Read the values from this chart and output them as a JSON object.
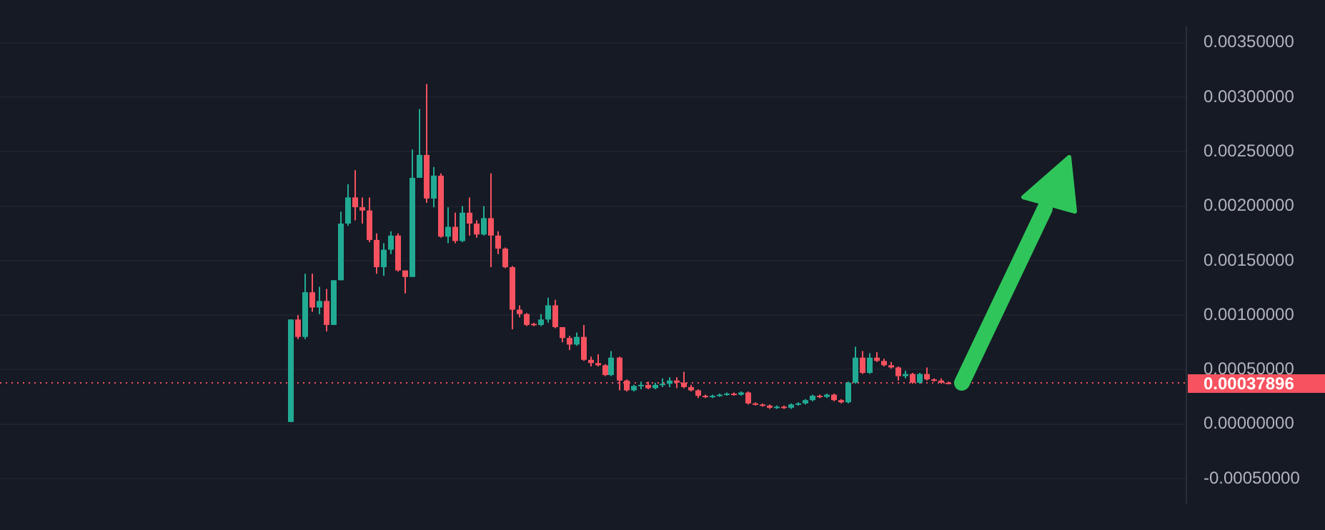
{
  "chart_data": {
    "type": "candlestick",
    "categories": [
      null,
      null,
      null,
      null,
      null,
      null,
      null,
      null,
      null,
      null,
      null,
      null,
      null,
      null,
      null,
      null,
      null,
      null,
      null,
      null,
      null,
      null,
      null,
      null,
      null,
      null,
      null,
      null,
      null,
      null,
      null,
      null,
      null,
      null,
      null,
      null,
      null,
      null,
      null,
      null,
      null,
      null,
      null,
      null,
      null,
      null,
      null,
      null,
      null,
      null,
      null,
      null,
      null,
      null,
      null,
      null,
      null,
      null,
      null,
      null,
      null,
      null,
      null,
      null,
      null,
      null,
      null,
      null,
      null,
      null,
      null,
      null,
      null,
      null,
      null,
      null,
      null,
      null,
      null,
      null,
      null,
      null,
      null,
      null,
      null,
      null,
      null,
      null,
      null,
      null,
      null,
      null,
      null,
      null,
      null,
      null,
      null,
      null,
      null,
      null,
      null,
      null,
      null,
      null,
      null,
      null,
      null,
      null,
      null,
      null,
      null,
      null,
      null,
      null,
      null,
      null,
      null,
      null,
      null,
      null,
      null,
      null,
      null,
      null,
      null,
      null,
      null,
      null,
      null,
      null,
      null,
      null,
      null,
      null,
      null,
      null,
      null,
      null,
      null,
      null,
      null,
      null,
      null,
      null,
      null,
      null,
      null,
      null,
      null,
      null,
      null,
      null,
      null,
      null,
      null,
      null,
      null,
      null,
      null,
      null,
      null,
      null,
      null,
      null,
      null,
      null
    ],
    "ohlc": [
      null,
      null,
      null,
      null,
      null,
      null,
      null,
      null,
      null,
      null,
      null,
      null,
      null,
      null,
      null,
      null,
      null,
      null,
      null,
      null,
      null,
      null,
      null,
      null,
      null,
      null,
      null,
      null,
      null,
      null,
      null,
      null,
      null,
      null,
      null,
      null,
      null,
      null,
      null,
      null,
      [
        2e-05,
        0.00096,
        2e-05,
        0.00096
      ],
      [
        0.00096,
        0.001,
        0.00078,
        0.0008
      ],
      [
        0.0008,
        0.00138,
        0.00078,
        0.00121
      ],
      [
        0.00121,
        0.00138,
        0.00103,
        0.00107
      ],
      [
        0.00107,
        0.00126,
        0.00101,
        0.00113
      ],
      [
        0.00113,
        0.00124,
        0.00085,
        0.00091
      ],
      [
        0.00091,
        0.00132,
        0.00091,
        0.00132
      ],
      [
        0.00132,
        0.00195,
        0.00132,
        0.00184
      ],
      [
        0.00184,
        0.0022,
        0.00182,
        0.00208
      ],
      [
        0.00208,
        0.00233,
        0.00187,
        0.00199
      ],
      [
        0.00199,
        0.00208,
        0.00184,
        0.00196
      ],
      [
        0.00196,
        0.00208,
        0.00167,
        0.00169
      ],
      [
        0.00169,
        0.00175,
        0.00138,
        0.00144
      ],
      [
        0.00144,
        0.00166,
        0.00136,
        0.0016
      ],
      [
        0.0016,
        0.00177,
        0.00156,
        0.00173
      ],
      [
        0.00173,
        0.00175,
        0.0014,
        0.00141
      ],
      [
        0.00141,
        0.00141,
        0.0012,
        0.00135
      ],
      [
        0.00135,
        0.00252,
        0.00135,
        0.00226
      ],
      [
        0.00226,
        0.00289,
        0.00226,
        0.00247
      ],
      [
        0.00247,
        0.00312,
        0.00203,
        0.00207
      ],
      [
        0.00207,
        0.00236,
        0.00199,
        0.00228
      ],
      [
        0.00228,
        0.0023,
        0.00171,
        0.00172
      ],
      [
        0.00172,
        0.00199,
        0.00166,
        0.00181
      ],
      [
        0.00181,
        0.00194,
        0.00166,
        0.00168
      ],
      [
        0.00168,
        0.002,
        0.00167,
        0.00194
      ],
      [
        0.00194,
        0.00208,
        0.00173,
        0.00184
      ],
      [
        0.00184,
        0.00187,
        0.00171,
        0.00174
      ],
      [
        0.00174,
        0.002,
        0.00173,
        0.00189
      ],
      [
        0.00189,
        0.0023,
        0.00144,
        0.00173
      ],
      [
        0.00173,
        0.00177,
        0.00156,
        0.00161
      ],
      [
        0.00161,
        0.00162,
        0.00143,
        0.00144
      ],
      [
        0.00144,
        0.00145,
        0.00087,
        0.00105
      ],
      [
        0.00105,
        0.00109,
        0.00098,
        0.00101
      ],
      [
        0.00101,
        0.00102,
        0.0009,
        0.00091
      ],
      [
        0.00092,
        0.00093,
        0.0009,
        0.00091
      ],
      [
        0.00091,
        0.00101,
        0.0009,
        0.00096
      ],
      [
        0.00096,
        0.00116,
        0.00093,
        0.00109
      ],
      [
        0.00109,
        0.00114,
        0.00088,
        0.00089
      ],
      [
        0.00089,
        0.00089,
        0.00075,
        0.00079
      ],
      [
        0.00079,
        0.00081,
        0.00068,
        0.00073
      ],
      [
        0.00073,
        0.00084,
        0.00072,
        0.0008
      ],
      [
        0.0008,
        0.00091,
        0.00058,
        0.00059
      ],
      [
        0.00059,
        0.00062,
        0.00053,
        0.00056
      ],
      [
        0.00056,
        0.00064,
        0.00053,
        0.00054
      ],
      [
        0.00054,
        0.00055,
        0.00044,
        0.00045
      ],
      [
        0.00045,
        0.00067,
        0.00044,
        0.00061
      ],
      [
        0.00061,
        0.00062,
        0.00031,
        0.0004
      ],
      [
        0.0004,
        0.00041,
        0.0003,
        0.00031
      ],
      [
        0.00031,
        0.00036,
        0.0003,
        0.00035
      ],
      [
        0.00035,
        0.00039,
        0.00032,
        0.00036
      ],
      [
        0.00036,
        0.00039,
        0.00032,
        0.00033
      ],
      [
        0.00033,
        0.00038,
        0.00032,
        0.00036
      ],
      [
        0.00036,
        0.00042,
        0.00034,
        0.00037
      ],
      [
        0.00037,
        0.00043,
        0.00034,
        0.0004
      ],
      [
        0.0004,
        0.00043,
        0.00033,
        0.00038
      ],
      [
        0.00038,
        0.00048,
        0.00033,
        0.00034
      ],
      [
        0.00034,
        0.00036,
        0.0003,
        0.00031
      ],
      [
        0.00031,
        0.00032,
        0.00024,
        0.00026
      ],
      [
        0.00026,
        0.00027,
        0.00024,
        0.00025
      ],
      [
        0.00025,
        0.00027,
        0.00024,
        0.00026
      ],
      [
        0.00026,
        0.00028,
        0.00025,
        0.00027
      ],
      [
        0.00027,
        0.00029,
        0.00026,
        0.00028
      ],
      [
        0.00028,
        0.00029,
        0.00026,
        0.00027
      ],
      [
        0.00027,
        0.0003,
        0.00026,
        0.00029
      ],
      [
        0.00029,
        0.0003,
        0.00018,
        0.00019
      ],
      [
        0.00019,
        0.0002,
        0.00017,
        0.00018
      ],
      [
        0.00018,
        0.00019,
        0.00016,
        0.00017
      ],
      [
        0.00017,
        0.00018,
        0.00014,
        0.00015
      ],
      [
        0.00015,
        0.00017,
        0.00014,
        0.00016
      ],
      [
        0.00016,
        0.00017,
        0.00014,
        0.00015
      ],
      [
        0.00015,
        0.00019,
        0.00014,
        0.00018
      ],
      [
        0.00018,
        0.0002,
        0.00017,
        0.00019
      ],
      [
        0.00019,
        0.00023,
        0.00018,
        0.00022
      ],
      [
        0.00022,
        0.00027,
        0.00021,
        0.00026
      ],
      [
        0.00026,
        0.00027,
        0.00024,
        0.00025
      ],
      [
        0.00025,
        0.00028,
        0.00024,
        0.00027
      ],
      [
        0.00027,
        0.00028,
        0.00021,
        0.00022
      ],
      [
        0.00022,
        0.00023,
        0.00019,
        0.0002
      ],
      [
        0.0002,
        0.00039,
        0.00019,
        0.00038
      ],
      [
        0.00038,
        0.00071,
        0.00037,
        0.00061
      ],
      [
        0.00061,
        0.00067,
        0.00046,
        0.00047
      ],
      [
        0.00047,
        0.00065,
        0.00046,
        0.00061
      ],
      [
        0.00061,
        0.00066,
        0.00057,
        0.00058
      ],
      [
        0.00058,
        0.0006,
        0.00053,
        0.00054
      ],
      [
        0.00054,
        0.00057,
        0.00051,
        0.00052
      ],
      [
        0.00052,
        0.00053,
        0.0004,
        0.00044
      ],
      [
        0.00044,
        0.00049,
        0.00042,
        0.00046
      ],
      [
        0.00046,
        0.00047,
        0.00037,
        0.00038
      ],
      [
        0.00038,
        0.00047,
        0.00037,
        0.00046
      ],
      [
        0.00046,
        0.00052,
        0.0004,
        0.00041
      ],
      [
        0.00041,
        0.00042,
        0.00039,
        0.0004
      ],
      [
        0.0004,
        0.00042,
        0.00037,
        0.00038
      ],
      [
        0.00038,
        0.00039,
        0.00037,
        0.00037896
      ],
      null,
      null,
      null,
      null,
      null,
      null,
      null,
      null,
      null,
      null,
      null,
      null,
      null,
      null,
      null,
      null,
      null,
      null,
      null,
      null,
      null,
      null,
      null,
      null,
      null,
      null,
      null,
      null,
      null,
      null,
      null,
      null,
      null
    ],
    "ylim": [
      -0.00072,
      0.00364
    ],
    "yticks": [
      {
        "value": -0.0005,
        "label": "-0.00050000"
      },
      {
        "value": 0,
        "label": "0.00000000"
      },
      {
        "value": 0.0005,
        "label": "0.00050000"
      },
      {
        "value": 0.001,
        "label": "0.00100000"
      },
      {
        "value": 0.0015,
        "label": "0.00150000"
      },
      {
        "value": 0.002,
        "label": "0.00200000"
      },
      {
        "value": 0.0025,
        "label": "0.00250000"
      },
      {
        "value": 0.003,
        "label": "0.00300000"
      },
      {
        "value": 0.0035,
        "label": "0.00350000"
      }
    ],
    "ref_lines": [
      {
        "axis": "y",
        "value": 0.00037896,
        "label": "0.00037896",
        "color": "#f7525f",
        "line_style": "dotted"
      }
    ],
    "grid": "y",
    "tick_labels": "y"
  }
}
